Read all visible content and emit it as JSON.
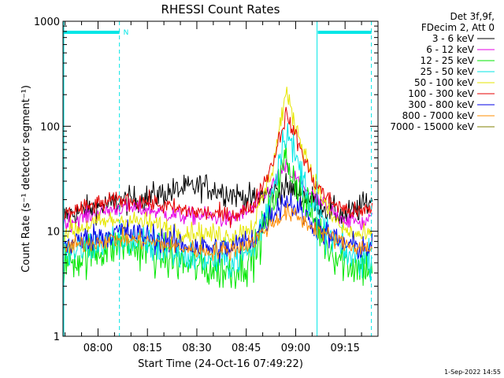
{
  "chart_data": {
    "type": "line",
    "title": "RHESSI Count Rates",
    "xlabel": "Start Time (24-Oct-16 07:49:22)",
    "ylabel": "Count Rate (s⁻¹ detector segment⁻¹)",
    "yscale": "log",
    "ylim": [
      1,
      1000
    ],
    "xlim": [
      "07:49:22",
      "09:25:00"
    ],
    "x_ticks": [
      "08:00",
      "08:15",
      "08:30",
      "08:45",
      "09:00",
      "09:15"
    ],
    "y_ticks": [
      "1",
      "10",
      "100",
      "1000"
    ],
    "grid": false,
    "legend_position": "top-right",
    "legend_header": [
      "Det 3f,9f,",
      "FDecim 2, Att 0"
    ],
    "footer_timestamp": "1-Sep-2022 14:55",
    "markers": {
      "night_label": "N",
      "eclipse_bars": [
        {
          "start": "07:49:22",
          "end": "08:06:30"
        },
        {
          "start": "09:06:30",
          "end": "09:23:00"
        }
      ],
      "vertical_lines": [
        {
          "time": "07:49:22",
          "style": "solid"
        },
        {
          "time": "08:06:30",
          "style": "dashed"
        },
        {
          "time": "09:06:30",
          "style": "solid"
        },
        {
          "time": "09:23:00",
          "style": "dashed"
        }
      ],
      "color": "#00e6e6"
    },
    "series": [
      {
        "name": "3 - 6 keV",
        "color": "#000000",
        "x": [
          "07:50",
          "08:00",
          "08:07",
          "08:15",
          "08:25",
          "08:32",
          "08:40",
          "08:47",
          "08:53",
          "08:57",
          "09:00",
          "09:05",
          "09:10",
          "09:15",
          "09:20",
          "09:23"
        ],
        "values": [
          14,
          17,
          19,
          21,
          25,
          27,
          23,
          20,
          24,
          26,
          24,
          20,
          16,
          14,
          17,
          20
        ]
      },
      {
        "name": "6 - 12 keV",
        "color": "#e600e6",
        "x": [
          "07:50",
          "08:00",
          "08:07",
          "08:15",
          "08:25",
          "08:32",
          "08:40",
          "08:47",
          "08:53",
          "08:57",
          "09:00",
          "09:05",
          "09:10",
          "09:15",
          "09:20",
          "09:23"
        ],
        "values": [
          12,
          15,
          17,
          16,
          14,
          14,
          13,
          16,
          27,
          40,
          32,
          22,
          16,
          13,
          12,
          13
        ]
      },
      {
        "name": "12 - 25 keV",
        "color": "#00e600",
        "x": [
          "07:50",
          "08:00",
          "08:07",
          "08:15",
          "08:25",
          "08:32",
          "08:40",
          "08:47",
          "08:53",
          "08:57",
          "09:00",
          "09:05",
          "09:10",
          "09:15",
          "09:20",
          "09:23"
        ],
        "values": [
          5,
          6.5,
          7.5,
          6.5,
          5,
          4.5,
          4.2,
          5.5,
          18,
          50,
          30,
          14,
          7,
          5,
          4.5,
          4.5
        ]
      },
      {
        "name": "25 - 50 keV",
        "color": "#00e6e6",
        "x": [
          "07:50",
          "08:00",
          "08:07",
          "08:15",
          "08:25",
          "08:32",
          "08:40",
          "08:47",
          "08:53",
          "08:57",
          "09:00",
          "09:05",
          "09:10",
          "09:15",
          "09:20",
          "09:23"
        ],
        "values": [
          6,
          7.5,
          8.5,
          7.5,
          6,
          5.5,
          5.2,
          6.5,
          25,
          95,
          50,
          18,
          9,
          6,
          5.5,
          5.5
        ]
      },
      {
        "name": "50 - 100 keV",
        "color": "#e6e600",
        "x": [
          "07:50",
          "08:00",
          "08:07",
          "08:15",
          "08:25",
          "08:32",
          "08:40",
          "08:47",
          "08:53",
          "08:57",
          "09:00",
          "09:05",
          "09:10",
          "09:15",
          "09:20",
          "09:23"
        ],
        "values": [
          10,
          12,
          13,
          12,
          10,
          9.5,
          9,
          11,
          40,
          210,
          100,
          35,
          15,
          10,
          9,
          9
        ]
      },
      {
        "name": "100 - 300 keV",
        "color": "#e60000",
        "x": [
          "07:50",
          "08:00",
          "08:07",
          "08:15",
          "08:25",
          "08:32",
          "08:40",
          "08:47",
          "08:53",
          "08:57",
          "09:00",
          "09:05",
          "09:10",
          "09:15",
          "09:20",
          "09:23"
        ],
        "values": [
          15,
          18,
          20,
          19,
          16,
          15,
          14,
          17,
          45,
          130,
          80,
          32,
          20,
          16,
          15,
          17
        ]
      },
      {
        "name": "300 - 800 keV",
        "color": "#0000e6",
        "x": [
          "07:50",
          "08:00",
          "08:07",
          "08:15",
          "08:25",
          "08:32",
          "08:40",
          "08:47",
          "08:53",
          "08:57",
          "09:00",
          "09:05",
          "09:10",
          "09:15",
          "09:20",
          "09:23"
        ],
        "values": [
          7.5,
          9,
          10,
          9,
          7.5,
          7,
          6.8,
          8.5,
          15,
          20,
          17,
          12,
          9,
          7.5,
          7,
          7
        ]
      },
      {
        "name": "800 - 7000 keV",
        "color": "#ff8c00",
        "x": [
          "07:50",
          "08:00",
          "08:07",
          "08:15",
          "08:25",
          "08:32",
          "08:40",
          "08:47",
          "08:53",
          "08:57",
          "09:00",
          "09:05",
          "09:10",
          "09:15",
          "09:20",
          "09:23"
        ],
        "values": [
          7,
          8,
          8.5,
          8,
          7,
          6.5,
          6.5,
          8,
          12,
          15,
          14,
          11,
          9,
          7.5,
          7,
          7
        ]
      },
      {
        "name": "7000 - 15000 keV",
        "color": "#808000",
        "x": [],
        "values": []
      }
    ]
  }
}
